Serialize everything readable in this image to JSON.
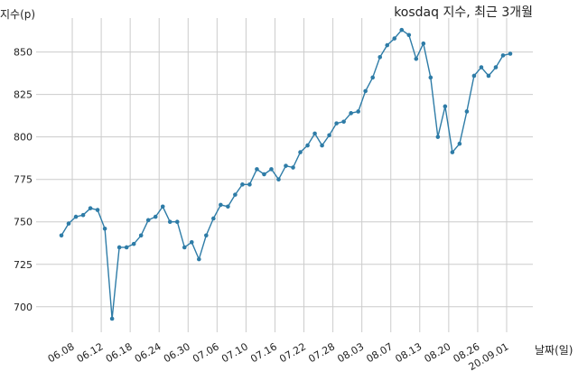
{
  "chart_data": {
    "type": "line",
    "title": "kosdaq 지수, 최근 3개월",
    "xlabel": "날짜(일)",
    "ylabel": "지수(p)",
    "ylim": [
      685,
      870
    ],
    "yticks": [
      700,
      725,
      750,
      775,
      800,
      825,
      850
    ],
    "grid": true,
    "line_color": "#2e7ca7",
    "xticks": [
      {
        "index": 1.5,
        "label": "06.08"
      },
      {
        "index": 5.5,
        "label": "06.12"
      },
      {
        "index": 9.5,
        "label": "06.18"
      },
      {
        "index": 13.5,
        "label": "06.24"
      },
      {
        "index": 17.5,
        "label": "06.30"
      },
      {
        "index": 21.5,
        "label": "07.06"
      },
      {
        "index": 25.5,
        "label": "07.10"
      },
      {
        "index": 29.5,
        "label": "07.16"
      },
      {
        "index": 33.5,
        "label": "07.22"
      },
      {
        "index": 37.5,
        "label": "07.28"
      },
      {
        "index": 41.5,
        "label": "08.03"
      },
      {
        "index": 45.5,
        "label": "08.07"
      },
      {
        "index": 49.5,
        "label": "08.13"
      },
      {
        "index": 53.5,
        "label": "08.20"
      },
      {
        "index": 57.5,
        "label": "08.26"
      },
      {
        "index": 61.5,
        "label": "20.09.01"
      }
    ],
    "series": [
      {
        "values": [
          742,
          749,
          753,
          754,
          758,
          757,
          746,
          693,
          735,
          735,
          737,
          742,
          751,
          753,
          759,
          750,
          750,
          735,
          738,
          728,
          742,
          752,
          760,
          759,
          766,
          772,
          772,
          781,
          778,
          781,
          775,
          783,
          782,
          791,
          795,
          802,
          795,
          801,
          808,
          809,
          814,
          815,
          827,
          835,
          847,
          854,
          858,
          863,
          860,
          846,
          855,
          835,
          800,
          818,
          791,
          796,
          815,
          836,
          841,
          836,
          841,
          848,
          849
        ]
      }
    ]
  }
}
